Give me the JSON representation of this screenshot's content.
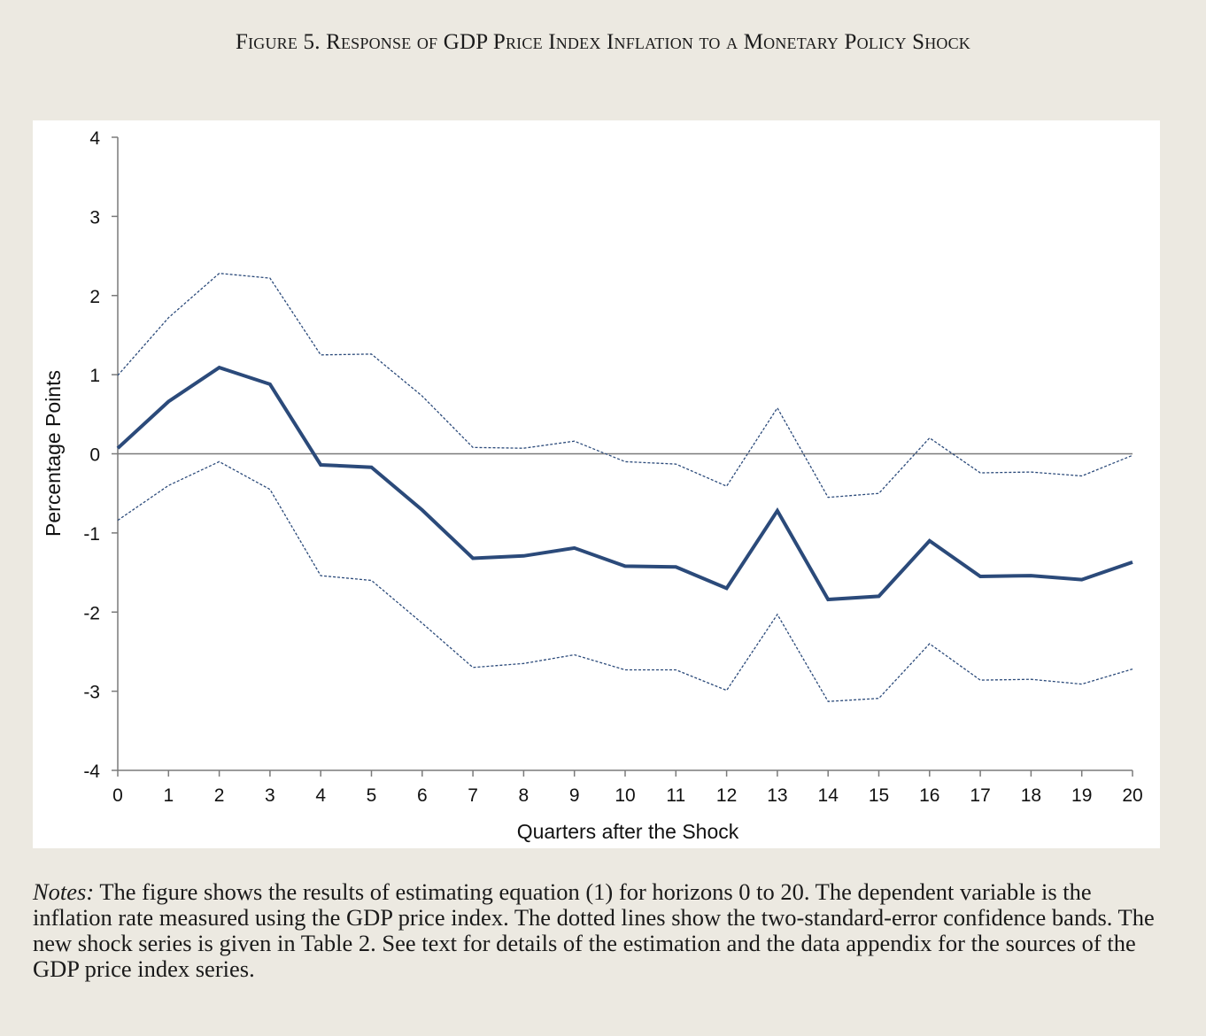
{
  "figure": {
    "title": "Figure 5. Response of GDP Price Index Inflation to a Monetary Policy Shock"
  },
  "notes": {
    "label": "Notes:",
    "text": " The figure shows the results of estimating equation (1) for horizons 0 to 20. The dependent variable is the inflation rate measured using the GDP price index. The dotted lines show the two-standard-error confidence bands. The new shock series is given in Table 2. See text for details of the estimation and the data appendix for the sources of the GDP price index series."
  },
  "colors": {
    "main_line": "#2b4a7a",
    "band_line": "#2b4a7a",
    "axis": "#7a7a7a",
    "zero_line": "#7a7a7a"
  },
  "chart_data": {
    "type": "line",
    "title": "",
    "xlabel": "Quarters after the Shock",
    "ylabel": "Percentage Points",
    "x": [
      0,
      1,
      2,
      3,
      4,
      5,
      6,
      7,
      8,
      9,
      10,
      11,
      12,
      13,
      14,
      15,
      16,
      17,
      18,
      19,
      20
    ],
    "xlim": [
      0,
      20
    ],
    "ylim": [
      -4,
      4
    ],
    "yticks": [
      -4,
      -3,
      -2,
      -1,
      0,
      1,
      2,
      3,
      4
    ],
    "grid": false,
    "legend": "none",
    "series": [
      {
        "style": "solid",
        "values": [
          0.07,
          0.66,
          1.09,
          0.88,
          -0.14,
          -0.17,
          -0.71,
          -1.32,
          -1.29,
          -1.19,
          -1.42,
          -1.43,
          -1.7,
          -0.72,
          -1.84,
          -1.8,
          -1.1,
          -1.55,
          -1.54,
          -1.59,
          -1.37
        ]
      },
      {
        "style": "dotted",
        "values": [
          0.99,
          1.72,
          2.28,
          2.22,
          1.25,
          1.26,
          0.73,
          0.08,
          0.07,
          0.16,
          -0.1,
          -0.13,
          -0.41,
          0.58,
          -0.55,
          -0.5,
          0.2,
          -0.24,
          -0.23,
          -0.28,
          -0.02
        ]
      },
      {
        "style": "dotted",
        "values": [
          -0.84,
          -0.4,
          -0.1,
          -0.45,
          -1.54,
          -1.6,
          -2.14,
          -2.7,
          -2.65,
          -2.54,
          -2.73,
          -2.73,
          -2.99,
          -2.03,
          -3.13,
          -3.09,
          -2.4,
          -2.86,
          -2.85,
          -2.91,
          -2.72
        ]
      }
    ]
  }
}
